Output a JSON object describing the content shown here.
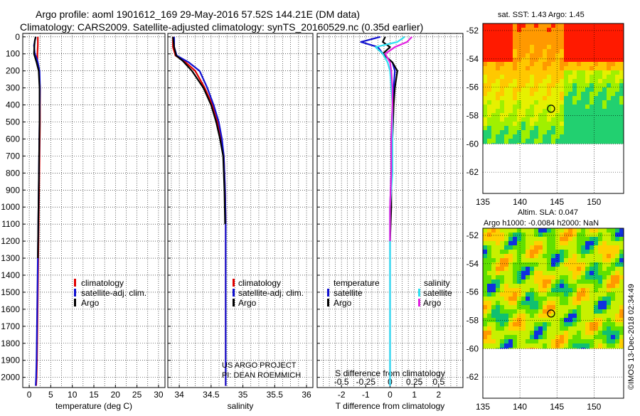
{
  "title_line1": "Argo profile: aoml 1901612_169 29-May-2016 57.52S 144.21E (DM data)",
  "title_line2": "Climatology: CARS2009. Satellite-adjusted climatology: synTS_20160529.nc (0.35d earlier)",
  "map1_title": "sat. SST: 1.43 Argo: 1.45",
  "map2_title1": "Altim. SLA: 0.047",
  "map2_title2": "Argo h1000: -0.0084 h2000: NaN",
  "credit_project": "US ARGO PROJECT",
  "credit_pi": "PI: DEAN ROEMMICH",
  "watermark": "©IMOS 13-Dec-2018 02:34:49",
  "legend_temp": {
    "clim": "climatology",
    "sat": "satellite-adj. clim.",
    "argo": "Argo"
  },
  "legend_sal": {
    "clim": "climatology",
    "sat": "satellite-adj. clim.",
    "argo": "Argo"
  },
  "legend_diff": {
    "temp_head": "temperature",
    "sal_head": "salinity",
    "sat": "satellite",
    "argo": "Argo"
  },
  "colors": {
    "climatology": "#e00000",
    "satellite": "#1010d0",
    "argo": "#000000",
    "sal_satellite": "#30e0f0",
    "sal_argo": "#e020e0"
  },
  "chart_data": [
    {
      "type": "line",
      "xlabel": "temperature (deg C)",
      "xlim": [
        -1.5,
        31.5
      ],
      "ylim": [
        2060,
        -20
      ],
      "xticks": [
        0,
        5,
        10,
        15,
        20,
        25,
        30
      ],
      "yticks": [
        0,
        100,
        200,
        300,
        400,
        500,
        600,
        700,
        800,
        900,
        1000,
        1100,
        1200,
        1300,
        1400,
        1500,
        1600,
        1700,
        1800,
        1900,
        2000
      ],
      "grid": true,
      "series": [
        {
          "name": "climatology",
          "x": [
            2.0,
            2.0,
            1.9,
            1.9,
            1.8,
            2.3,
            2.5,
            2.5,
            2.4,
            2.3,
            2.2,
            2.1,
            2.0,
            1.9,
            1.8,
            1.7,
            1.6
          ],
          "y": [
            0,
            50,
            100,
            130,
            150,
            200,
            300,
            500,
            700,
            900,
            1100,
            1300,
            1500,
            1700,
            1900,
            2000,
            2050
          ]
        },
        {
          "name": "satellite-adj. clim.",
          "x": [
            1.5,
            1.1,
            1.3,
            1.8,
            2.0,
            2.4,
            2.5,
            2.4,
            2.3,
            2.2,
            2.1,
            2.0,
            1.9,
            1.8,
            1.7,
            1.6,
            1.5
          ],
          "y": [
            0,
            50,
            100,
            130,
            150,
            200,
            300,
            500,
            700,
            900,
            1100,
            1300,
            1500,
            1700,
            1900,
            2000,
            2050
          ]
        },
        {
          "name": "Argo",
          "x": [
            1.5,
            1.3,
            1.2,
            1.1,
            1.7,
            2.2,
            2.4,
            2.4,
            2.3,
            2.2,
            2.1,
            2.0
          ],
          "y": [
            0,
            20,
            50,
            100,
            150,
            200,
            300,
            500,
            700,
            900,
            1100,
            1300
          ]
        }
      ]
    },
    {
      "type": "line",
      "xlabel": "salinity",
      "xlim": [
        33.82,
        36.1
      ],
      "ylim": [
        2060,
        -20
      ],
      "xticks": [
        34,
        34.5,
        35,
        35.5,
        36
      ],
      "grid": true,
      "series": [
        {
          "name": "climatology",
          "x": [
            33.9,
            33.9,
            33.94,
            34.1,
            34.25,
            34.4,
            34.52,
            34.6,
            34.66,
            34.7,
            34.72,
            34.73,
            34.73,
            34.73,
            34.73
          ],
          "y": [
            0,
            60,
            110,
            150,
            200,
            300,
            400,
            500,
            600,
            700,
            900,
            1100,
            1500,
            1900,
            2050
          ]
        },
        {
          "name": "satellite-adj. clim.",
          "x": [
            33.92,
            33.92,
            33.96,
            34.15,
            34.32,
            34.44,
            34.54,
            34.62,
            34.67,
            34.7,
            34.72,
            34.73,
            34.73,
            34.73,
            34.73
          ],
          "y": [
            0,
            60,
            110,
            150,
            200,
            300,
            400,
            500,
            600,
            700,
            900,
            1100,
            1500,
            1900,
            2050
          ]
        },
        {
          "name": "Argo",
          "x": [
            33.9,
            33.92,
            33.95,
            34.05,
            34.2,
            34.38,
            34.5,
            34.58,
            34.64,
            34.69,
            34.71,
            34.72
          ],
          "y": [
            0,
            60,
            110,
            140,
            200,
            300,
            400,
            500,
            600,
            700,
            900,
            1100
          ]
        }
      ]
    },
    {
      "type": "line",
      "xlabel": "T difference from climatology",
      "xlabel_top": "S difference from climatology",
      "xlim": [
        -3.0,
        3.0
      ],
      "ylim": [
        2060,
        -20
      ],
      "xticks": [
        -2,
        -1,
        0,
        1,
        2
      ],
      "xticks_top": [
        -0.5,
        -0.25,
        0,
        0.25,
        0.5
      ],
      "grid": true,
      "series": [
        {
          "name": "temperature satellite",
          "x": [
            -0.4,
            -1.2,
            -0.5,
            -0.3,
            0.1,
            0.2,
            0.15,
            0.1,
            0.05,
            0.05,
            0.0,
            0.0,
            0.0,
            0.0,
            0.0
          ],
          "y": [
            0,
            30,
            60,
            100,
            150,
            200,
            300,
            400,
            600,
            800,
            1000,
            1200,
            1500,
            1800,
            2050
          ]
        },
        {
          "name": "temperature Argo",
          "x": [
            -0.2,
            -0.3,
            0.0,
            -0.3,
            0.1,
            0.3,
            0.2,
            0.15,
            0.1,
            0.05,
            0.05,
            0.0
          ],
          "y": [
            0,
            30,
            60,
            100,
            150,
            200,
            300,
            400,
            600,
            800,
            1000,
            1200
          ]
        },
        {
          "name": "salinity satellite",
          "x": [
            0.6,
            0.3,
            -0.6,
            -0.3,
            -0.1,
            0.0,
            0.05,
            0.1,
            0.1,
            0.1,
            0.0,
            0.0,
            0.0,
            0.0,
            0.0
          ],
          "y": [
            0,
            30,
            60,
            100,
            150,
            200,
            300,
            400,
            600,
            800,
            1000,
            1200,
            1500,
            1800,
            2050
          ]
        },
        {
          "name": "salinity Argo",
          "x": [
            0.9,
            0.7,
            0.2,
            -0.2,
            0.0,
            0.05,
            0.1,
            0.1,
            0.05,
            0.05,
            0.0,
            0.0
          ],
          "y": [
            0,
            30,
            60,
            100,
            150,
            200,
            300,
            400,
            600,
            800,
            1000,
            1200
          ]
        }
      ]
    },
    {
      "type": "heatmap",
      "title": "sat. SST: 1.43 Argo: 1.45",
      "xlim": [
        135,
        154
      ],
      "ylim": [
        -63.5,
        -51.5
      ],
      "xticks": [
        135,
        140,
        145,
        150
      ],
      "yticks": [
        -52,
        -54,
        -56,
        -58,
        -60,
        -62
      ],
      "marker": {
        "lon": 144.21,
        "lat": -57.52
      }
    },
    {
      "type": "heatmap",
      "title": "Altim. SLA: 0.047",
      "subtitle": "Argo h1000: -0.0084 h2000: NaN",
      "xlim": [
        135,
        154
      ],
      "ylim": [
        -63.5,
        -51.5
      ],
      "xticks": [
        135,
        140,
        145,
        150
      ],
      "yticks": [
        -52,
        -54,
        -56,
        -58,
        -60,
        -62
      ],
      "marker": {
        "lon": 144.21,
        "lat": -57.52
      }
    }
  ]
}
